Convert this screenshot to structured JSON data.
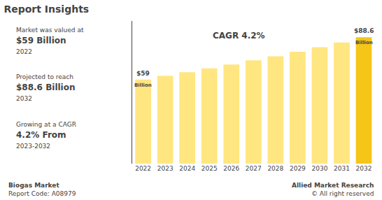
{
  "chart_data": {
    "type": "bar",
    "title": "Report Insights",
    "categories": [
      "2022",
      "2023",
      "2024",
      "2025",
      "2026",
      "2027",
      "2028",
      "2029",
      "2030",
      "2031",
      "2032"
    ],
    "values": [
      59,
      61.5,
      64.1,
      66.8,
      69.5,
      72.4,
      75.3,
      78.4,
      81.6,
      84.9,
      88.6
    ],
    "colors": [
      "#FFE680",
      "#FFE680",
      "#FFE680",
      "#FFE680",
      "#FFE680",
      "#FFE680",
      "#FFE680",
      "#FFE680",
      "#FFE680",
      "#FFE680",
      "#F5C518"
    ],
    "ylim": [
      0,
      100
    ],
    "yticks": [],
    "tick_labels": "x",
    "grid": false,
    "annotations": [
      {
        "text": [
          "CAGR 4.2%"
        ]
      },
      {
        "x": "2022",
        "y": 59,
        "text": [
          "$59",
          "Billion"
        ]
      },
      {
        "x": "2032",
        "y": 88.6,
        "text": [
          "$88.6",
          "Billion"
        ]
      },
      {
        "text": [
          "Market was valued at",
          "$59 Billion",
          "2022"
        ]
      },
      {
        "text": [
          "Projected to reach",
          "$88.6 Billion",
          "2032"
        ]
      },
      {
        "text": [
          "Growing at a CAGR",
          "4.2% From",
          "2023-2032"
        ]
      },
      {
        "text": [
          "Biogas Market",
          "Report Code: A08979"
        ]
      },
      {
        "text": [
          "Allied Market Research",
          "© All right reserved"
        ]
      }
    ]
  }
}
